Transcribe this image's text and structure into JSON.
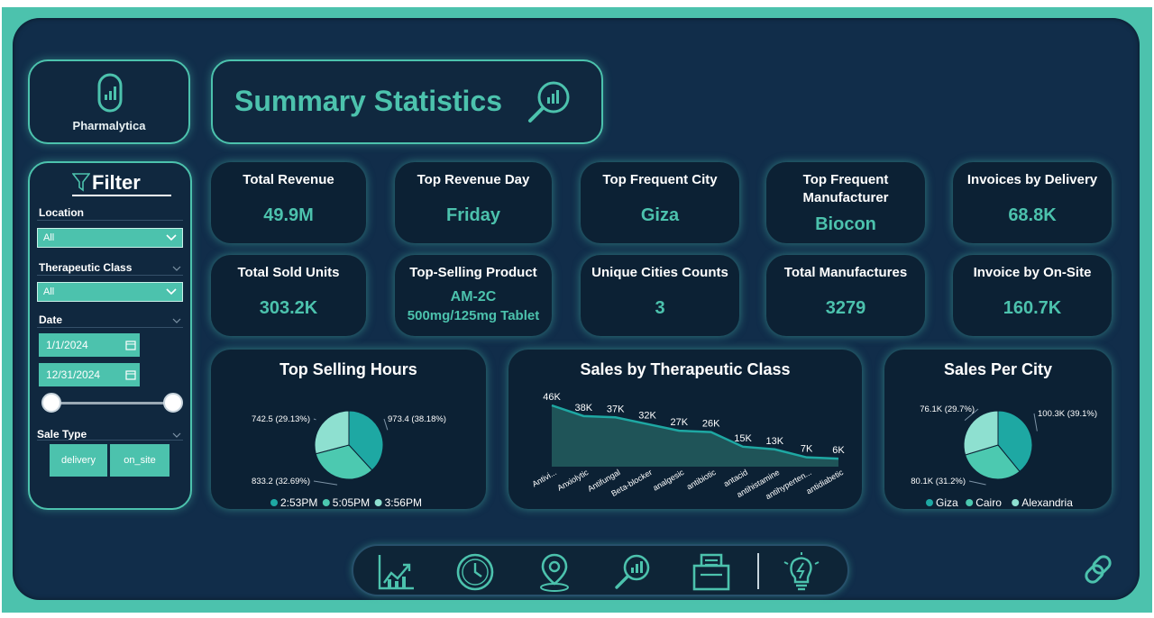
{
  "logo": {
    "name": "Pharmalytica"
  },
  "page_title": "Summary Statistics",
  "filter": {
    "title": "Filter",
    "location_label": "Location",
    "location_value": "All",
    "therapeutic_label": "Therapeutic Class",
    "therapeutic_value": "All",
    "date_label": "Date",
    "date_start": "1/1/2024",
    "date_end": "12/31/2024",
    "date_range_fraction": [
      0,
      1
    ],
    "sale_type_label": "Sale Type",
    "sale_types": [
      "delivery",
      "on_site"
    ]
  },
  "kpis": {
    "total_revenue": {
      "title": "Total Revenue",
      "value": "49.9M"
    },
    "top_revenue_day": {
      "title": "Top Revenue Day",
      "value": "Friday"
    },
    "top_frequent_city": {
      "title": "Top Frequent City",
      "value": "Giza"
    },
    "top_manufacturer": {
      "title_line1": "Top Frequent",
      "title_line2": "Manufacturer",
      "value": "Biocon"
    },
    "invoices_delivery": {
      "title": "Invoices by Delivery",
      "value": "68.8K"
    },
    "total_sold_units": {
      "title": "Total Sold Units",
      "value": "303.2K"
    },
    "top_selling_product": {
      "title": "Top-Selling Product",
      "value_line1": "AM-2C",
      "value_line2": "500mg/125mg Tablet"
    },
    "unique_cities": {
      "title": "Unique Cities Counts",
      "value": "3"
    },
    "total_manufactures": {
      "title": "Total Manufactures",
      "value": "3279"
    },
    "invoice_onsite": {
      "title": "Invoice by On-Site",
      "value": "160.7K"
    }
  },
  "chart_data": [
    {
      "type": "pie",
      "title": "Top Selling Hours",
      "labels": [
        "2:53PM",
        "5:05PM",
        "3:56PM"
      ],
      "values": [
        973.4,
        833.2,
        742.5
      ],
      "data_labels": [
        "973.4 (38.18%)",
        "833.2 (32.69%)",
        "742.5 (29.13%)"
      ],
      "colors": [
        "#1ea8a3",
        "#4cc9b0",
        "#8ee0d0"
      ],
      "legend": "bottom"
    },
    {
      "type": "area",
      "title": "Sales by Therapeutic Class",
      "categories": [
        "Antivi...",
        "Anxiolytic",
        "Antifungal",
        "Beta-blocker",
        "analgesic",
        "antibiotic",
        "antacid",
        "antihistamine",
        "antihyperten...",
        "antidiabetic"
      ],
      "values": [
        46,
        38,
        37,
        32,
        27,
        26,
        15,
        13,
        7,
        6
      ],
      "data_labels": [
        "46K",
        "38K",
        "37K",
        "32K",
        "27K",
        "26K",
        "15K",
        "13K",
        "7K",
        "6K"
      ],
      "color": "#1ea8a3"
    },
    {
      "type": "pie",
      "title": "Sales Per City",
      "labels": [
        "Giza",
        "Cairo",
        "Alexandria"
      ],
      "values": [
        100.3,
        80.1,
        76.1
      ],
      "data_labels": [
        "100.3K (39.1%)",
        "80.1K (31.2%)",
        "76.1K (29.7%)"
      ],
      "colors": [
        "#1ea8a3",
        "#4cc9b0",
        "#8ee0d0"
      ],
      "legend": "bottom"
    }
  ],
  "nav": {
    "icons": [
      "growth-chart-icon",
      "clock-icon",
      "location-pin-icon",
      "analytics-search-icon",
      "invoice-icon",
      "lightbulb-icon"
    ]
  },
  "colors": {
    "accent": "#4cc2ad",
    "background": "#112d4a",
    "card": "#0c2134"
  }
}
